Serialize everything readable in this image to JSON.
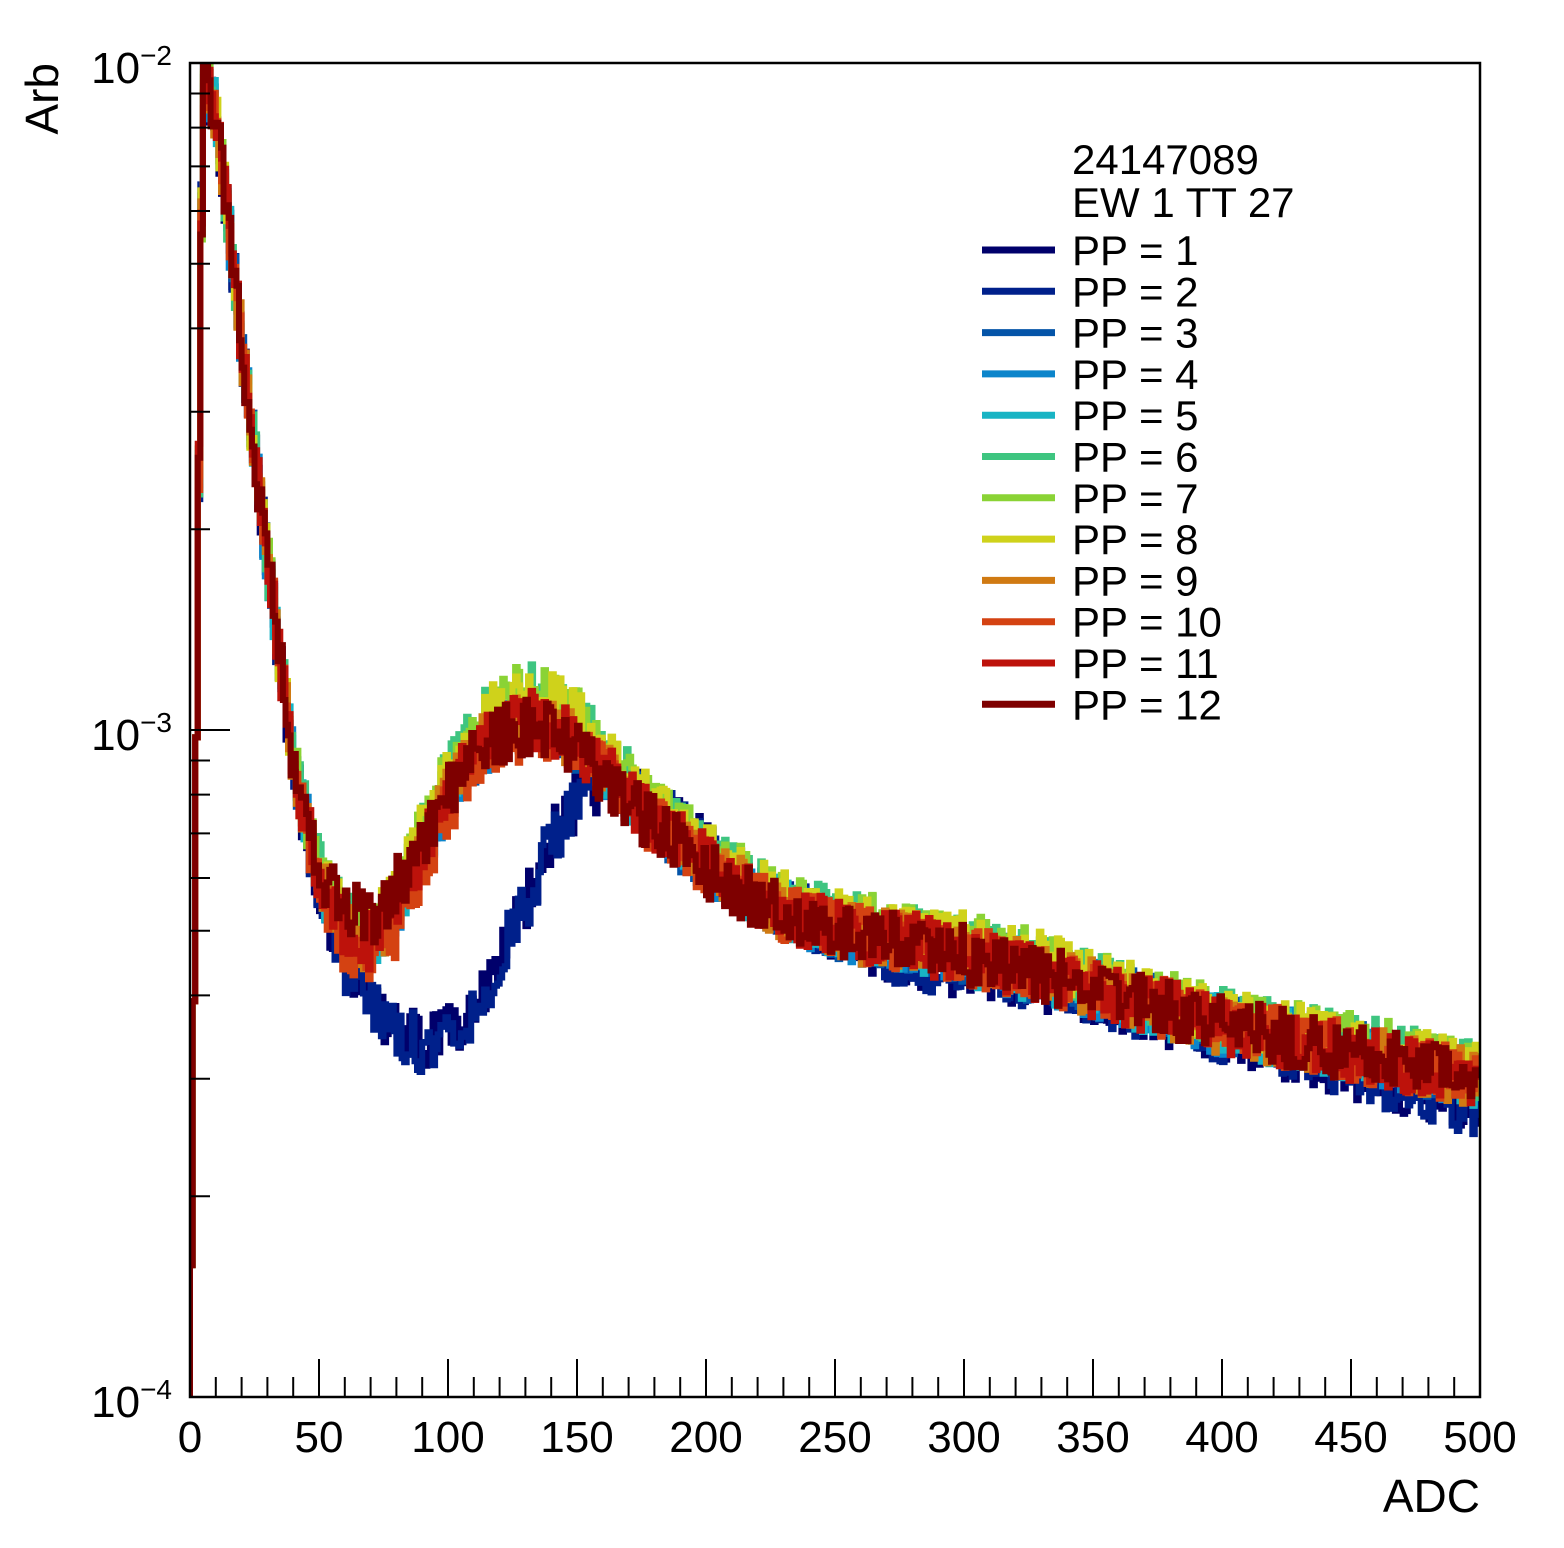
{
  "chart_data": {
    "type": "line",
    "title": "",
    "xlabel": "ADC",
    "ylabel": "Arb",
    "xlim": [
      0,
      500
    ],
    "ylim": [
      0.0001,
      0.01
    ],
    "y_scale": "log",
    "x_ticks": [
      "0",
      "50",
      "100",
      "150",
      "200",
      "250",
      "300",
      "350",
      "400",
      "450",
      "500"
    ],
    "y_ticks": [
      {
        "value": 0.01,
        "base": "10",
        "exp": "−2"
      },
      {
        "value": 0.001,
        "base": "10",
        "exp": "−3"
      },
      {
        "value": 0.0001,
        "base": "10",
        "exp": "−4"
      }
    ],
    "legend": {
      "placement": "top-right",
      "header": [
        "24147089",
        "EW 1 TT 27"
      ]
    },
    "x": [
      0,
      5,
      10,
      20,
      30,
      40,
      50,
      60,
      70,
      80,
      90,
      100,
      110,
      120,
      130,
      140,
      150,
      160,
      170,
      180,
      200,
      220,
      250,
      280,
      300,
      330,
      350,
      380,
      400,
      450,
      500
    ],
    "series": [
      {
        "name": "PP = 1",
        "color": "#00006b",
        "values": [
          0.0001,
          0.0095,
          0.0085,
          0.0038,
          0.0018,
          0.00088,
          0.00058,
          0.00045,
          0.00038,
          0.00035,
          0.00034,
          0.00035,
          0.00038,
          0.00045,
          0.00055,
          0.00068,
          0.00078,
          0.00084,
          0.00082,
          0.00076,
          0.00066,
          0.00057,
          0.0005,
          0.00045,
          0.00044,
          0.00042,
          0.0004,
          0.00037,
          0.00035,
          0.00031,
          0.00027
        ]
      },
      {
        "name": "PP = 2",
        "color": "#00208b",
        "values": [
          0.0001,
          0.0095,
          0.0085,
          0.0038,
          0.0018,
          0.00088,
          0.00058,
          0.00045,
          0.00038,
          0.00035,
          0.00034,
          0.00035,
          0.00038,
          0.00045,
          0.00055,
          0.00068,
          0.00078,
          0.00084,
          0.00082,
          0.00076,
          0.00066,
          0.00057,
          0.0005,
          0.00045,
          0.00044,
          0.00042,
          0.0004,
          0.00037,
          0.00035,
          0.00031,
          0.00027
        ]
      },
      {
        "name": "PP = 3",
        "color": "#0454a8",
        "values": [
          0.0001,
          0.0095,
          0.0085,
          0.0038,
          0.0018,
          0.0009,
          0.0006,
          0.0005,
          0.00048,
          0.00054,
          0.00066,
          0.0008,
          0.00092,
          0.001,
          0.00104,
          0.00102,
          0.00096,
          0.00088,
          0.0008,
          0.00073,
          0.00063,
          0.00056,
          0.0005,
          0.00048,
          0.00046,
          0.00043,
          0.00041,
          0.00038,
          0.00036,
          0.00033,
          0.0003
        ]
      },
      {
        "name": "PP = 4",
        "color": "#0c85cb",
        "values": [
          0.0001,
          0.0095,
          0.0085,
          0.0038,
          0.0018,
          0.0009,
          0.0006,
          0.0005,
          0.00048,
          0.00054,
          0.00066,
          0.0008,
          0.00092,
          0.001,
          0.00104,
          0.00102,
          0.00096,
          0.00088,
          0.0008,
          0.00073,
          0.00063,
          0.00056,
          0.0005,
          0.00048,
          0.00046,
          0.00043,
          0.00041,
          0.00038,
          0.00036,
          0.00033,
          0.0003
        ]
      },
      {
        "name": "PP = 5",
        "color": "#18b4c4",
        "values": [
          0.0001,
          0.0095,
          0.0085,
          0.0038,
          0.0018,
          0.0009,
          0.0006,
          0.0005,
          0.00048,
          0.00054,
          0.00066,
          0.0008,
          0.00092,
          0.001,
          0.00104,
          0.00102,
          0.00096,
          0.00088,
          0.0008,
          0.00073,
          0.00063,
          0.00056,
          0.0005,
          0.00048,
          0.00046,
          0.00043,
          0.00041,
          0.00038,
          0.00036,
          0.00033,
          0.0003
        ]
      },
      {
        "name": "PP = 6",
        "color": "#3ec580",
        "values": [
          0.0001,
          0.0095,
          0.0085,
          0.0038,
          0.0018,
          0.0009,
          0.00062,
          0.00052,
          0.0005,
          0.00056,
          0.0007,
          0.00086,
          0.001,
          0.0011,
          0.00114,
          0.00112,
          0.00104,
          0.00094,
          0.00084,
          0.00076,
          0.00066,
          0.00058,
          0.00052,
          0.0005,
          0.00048,
          0.00045,
          0.00042,
          0.00039,
          0.00037,
          0.00034,
          0.00031
        ]
      },
      {
        "name": "PP = 7",
        "color": "#8ad335",
        "values": [
          0.0001,
          0.0095,
          0.0085,
          0.0038,
          0.0018,
          0.0009,
          0.00062,
          0.00052,
          0.0005,
          0.00056,
          0.0007,
          0.00086,
          0.001,
          0.0011,
          0.00114,
          0.00112,
          0.00104,
          0.00094,
          0.00084,
          0.00076,
          0.00066,
          0.00058,
          0.00052,
          0.0005,
          0.00048,
          0.00045,
          0.00042,
          0.00039,
          0.00037,
          0.00034,
          0.00031
        ]
      },
      {
        "name": "PP = 8",
        "color": "#cfd21b",
        "values": [
          0.0001,
          0.0095,
          0.0085,
          0.0038,
          0.0018,
          0.0009,
          0.00062,
          0.00052,
          0.0005,
          0.00056,
          0.0007,
          0.00086,
          0.001,
          0.0011,
          0.00114,
          0.00112,
          0.00104,
          0.00094,
          0.00084,
          0.00076,
          0.00066,
          0.00058,
          0.00052,
          0.0005,
          0.00048,
          0.00045,
          0.00042,
          0.00039,
          0.00037,
          0.00034,
          0.00031
        ]
      },
      {
        "name": "PP = 9",
        "color": "#d07a12",
        "values": [
          0.0001,
          0.0095,
          0.0085,
          0.0038,
          0.0018,
          0.0009,
          0.0006,
          0.0005,
          0.00048,
          0.00054,
          0.00066,
          0.0008,
          0.00092,
          0.001,
          0.00104,
          0.00102,
          0.00096,
          0.00088,
          0.0008,
          0.00073,
          0.00063,
          0.00056,
          0.0005,
          0.00048,
          0.00046,
          0.00043,
          0.00041,
          0.00038,
          0.00036,
          0.00033,
          0.0003
        ]
      },
      {
        "name": "PP = 10",
        "color": "#d44212",
        "values": [
          0.0001,
          0.0095,
          0.0085,
          0.0038,
          0.0018,
          0.0009,
          0.00058,
          0.00048,
          0.00045,
          0.0005,
          0.00062,
          0.00076,
          0.00088,
          0.00096,
          0.001,
          0.001,
          0.00094,
          0.00086,
          0.00078,
          0.00072,
          0.00062,
          0.00055,
          0.0005,
          0.00048,
          0.00046,
          0.00043,
          0.00041,
          0.00038,
          0.00036,
          0.00033,
          0.0003
        ]
      },
      {
        "name": "PP = 11",
        "color": "#bd120b",
        "values": [
          0.0001,
          0.0095,
          0.0085,
          0.0038,
          0.0018,
          0.0009,
          0.0006,
          0.0005,
          0.00048,
          0.00054,
          0.00066,
          0.0008,
          0.00092,
          0.001,
          0.00104,
          0.00102,
          0.00096,
          0.00088,
          0.0008,
          0.00073,
          0.00063,
          0.00056,
          0.0005,
          0.00048,
          0.00046,
          0.00043,
          0.00041,
          0.00038,
          0.00036,
          0.00033,
          0.0003
        ]
      },
      {
        "name": "PP = 12",
        "color": "#7e0000",
        "values": [
          0.0001,
          0.0095,
          0.0085,
          0.0038,
          0.0018,
          0.0009,
          0.00062,
          0.00054,
          0.00052,
          0.00058,
          0.00068,
          0.0008,
          0.0009,
          0.00098,
          0.00102,
          0.001,
          0.00094,
          0.00086,
          0.00078,
          0.00072,
          0.00062,
          0.00055,
          0.0005,
          0.00048,
          0.00046,
          0.00043,
          0.00041,
          0.00038,
          0.00036,
          0.00033,
          0.0003
        ]
      }
    ]
  }
}
